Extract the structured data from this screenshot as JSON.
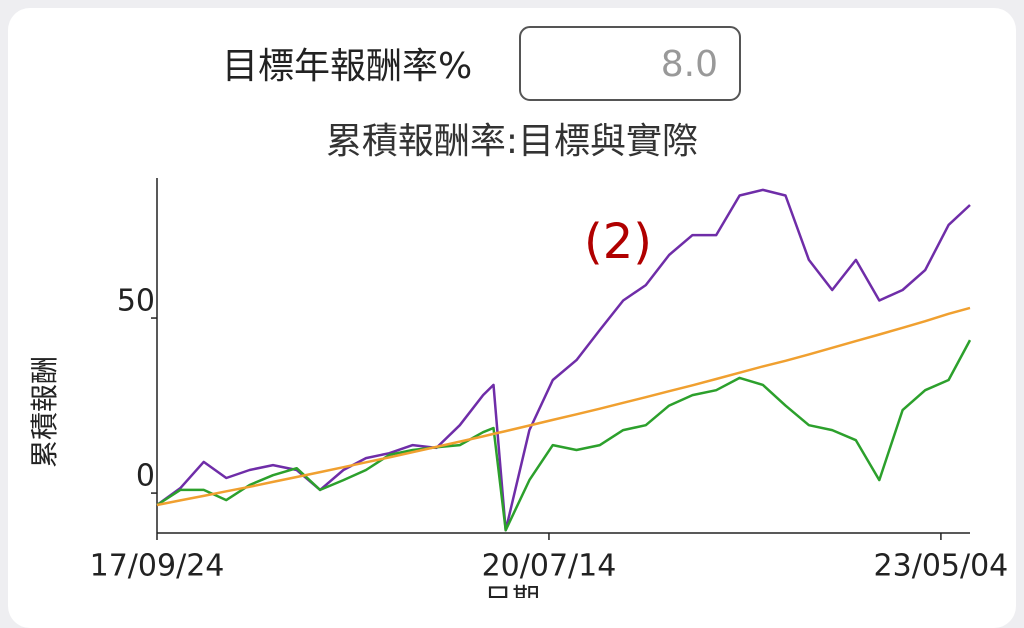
{
  "form": {
    "label": "目標年報酬率%",
    "input_value": "8.0"
  },
  "chart_data": {
    "type": "line",
    "title": "累積報酬率:目標與實際",
    "y_label": "累積報酬",
    "x_label": "日期",
    "annotation": "(2)",
    "x": [
      "2017-09-24",
      "2017-11-24",
      "2018-01-24",
      "2018-03-24",
      "2018-05-24",
      "2018-07-24",
      "2018-09-24",
      "2018-11-24",
      "2019-01-24",
      "2019-03-24",
      "2019-05-24",
      "2019-07-24",
      "2019-09-24",
      "2019-11-24",
      "2020-01-24",
      "2020-02-20",
      "2020-03-23",
      "2020-05-24",
      "2020-07-24",
      "2020-09-24",
      "2020-11-24",
      "2021-01-24",
      "2021-03-24",
      "2021-05-24",
      "2021-07-24",
      "2021-09-24",
      "2021-11-24",
      "2022-01-24",
      "2022-03-24",
      "2022-05-24",
      "2022-07-24",
      "2022-09-24",
      "2022-11-24",
      "2023-01-24",
      "2023-03-24",
      "2023-05-24",
      "2023-07-19"
    ],
    "series": [
      {
        "color": "#6f2da8",
        "values": [
          -3.4,
          1.4,
          8.9,
          4.3,
          6.6,
          8,
          6.6,
          0.9,
          6.6,
          10,
          11.4,
          13.7,
          12.9,
          19.4,
          28,
          30.9,
          -10.6,
          18,
          32.3,
          38,
          46.6,
          55,
          59.4,
          68,
          73.7,
          73.7,
          85,
          86.6,
          85,
          66.6,
          58,
          66.6,
          55,
          58,
          63.7,
          76.6,
          82.3
        ]
      },
      {
        "color": "#2ca02c",
        "values": [
          -3.4,
          0.9,
          0.9,
          -2,
          2.3,
          5.1,
          7.1,
          0.9,
          3.7,
          6.6,
          10.9,
          12.3,
          13.1,
          13.7,
          17.4,
          18.6,
          -10.6,
          3.7,
          13.7,
          12.3,
          13.7,
          18,
          19.4,
          25,
          28,
          29.4,
          32.9,
          30.9,
          25,
          19.4,
          18,
          15.1,
          3.7,
          23.7,
          29.4,
          32.3,
          43.7
        ]
      },
      {
        "color": "#f0a030",
        "values": [
          -3.4,
          -2.1,
          -0.8,
          0.5,
          1.8,
          3.2,
          4.6,
          6.0,
          7.4,
          8.8,
          10.2,
          11.7,
          13.2,
          14.7,
          16.2,
          16.9,
          17.7,
          19.3,
          20.9,
          22.5,
          24.1,
          25.8,
          27.4,
          29.1,
          30.8,
          32.6,
          34.4,
          36.2,
          37.8,
          39.6,
          41.5,
          43.4,
          45.3,
          47.2,
          49.1,
          51.2,
          52.9
        ]
      }
    ],
    "xlim": [
      "2017-09-24",
      "2023-07-19"
    ],
    "xticks": [
      {
        "value": "2017-09-24",
        "label": "17/09/24"
      },
      {
        "value": "2020-07-14",
        "label": "20/07/14"
      },
      {
        "value": "2023-05-04",
        "label": "23/05/04"
      }
    ],
    "ylim": [
      -11.4,
      90
    ],
    "yticks": [
      0,
      50
    ],
    "grid": false
  }
}
